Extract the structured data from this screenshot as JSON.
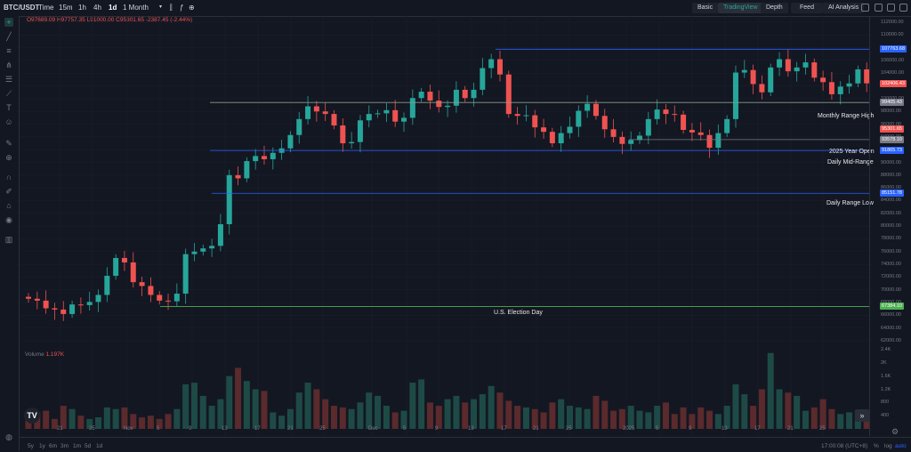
{
  "header": {
    "symbol": "BTC/USDT",
    "timeframes": [
      "Time",
      "15m",
      "1h",
      "4h",
      "1d",
      "1 Month"
    ],
    "active_timeframe": "1d",
    "view_tabs": [
      "Basic",
      "TradingView",
      "Depth"
    ],
    "active_view": "TradingView",
    "feed_label": "Feed",
    "ai_label": "AI Analysis"
  },
  "ohlc": {
    "open": "O97689.09",
    "high": "H97757.35",
    "low": "L91000.00",
    "close": "C95301.65",
    "change": "-2387.45 (-2.44%)"
  },
  "y_axis": {
    "labels": [
      "112000.00",
      "110000.00",
      "108000.00",
      "106000.00",
      "104000.00",
      "102000.00",
      "100000.00",
      "98000.00",
      "96000.00",
      "94000.00",
      "92000.00",
      "90000.00",
      "88000.00",
      "86000.00",
      "84000.00",
      "82000.00",
      "80000.00",
      "78000.00",
      "76000.00",
      "74000.00",
      "72000.00",
      "70000.00",
      "68000.00",
      "66000.00",
      "64000.00",
      "62000.00"
    ],
    "vol_labels": [
      "2.4K",
      "2K",
      "1.6K",
      "1.2K",
      "800",
      "400"
    ]
  },
  "price_tags": [
    {
      "label": "107763.68",
      "color": "#2962ff"
    },
    {
      "label": "102406.43",
      "color": "#ef5350"
    },
    {
      "label": "99405.43",
      "color": "#787b86"
    },
    {
      "label": "95301.65",
      "color": "#ef5350"
    },
    {
      "label": "93578.10",
      "color": "#787b86"
    },
    {
      "label": "91865.73",
      "color": "#2962ff"
    },
    {
      "label": "85151.78",
      "color": "#2962ff"
    },
    {
      "label": "67384.10",
      "color": "#4caf50"
    }
  ],
  "levels": {
    "monthly_high": {
      "price": 107763.68,
      "label": ""
    },
    "monthly_range_high": {
      "price": 99405.43,
      "label": "Monthly Range High"
    },
    "year_open": {
      "price": 93578.1,
      "label": "2025 Year Open"
    },
    "daily_mid": {
      "price": 91865.73,
      "label": "Daily Mid-Range"
    },
    "daily_low": {
      "price": 85151.78,
      "label": "Daily Range Low"
    },
    "election": {
      "price": 67384.1,
      "label": "U.S. Election Day"
    }
  },
  "volume": {
    "title": "Volume",
    "value": "1.197K"
  },
  "x_axis": [
    "21",
    "25",
    "Nov",
    "5",
    "9",
    "13",
    "17",
    "21",
    "25",
    "Dec",
    "5",
    "9",
    "13",
    "17",
    "21",
    "25",
    "2025",
    "5",
    "9",
    "13",
    "17",
    "21",
    "25"
  ],
  "bottom": {
    "ranges": [
      "5y",
      "1y",
      "6m",
      "3m",
      "1m",
      "5d",
      "1d"
    ],
    "time": "17:00:08 (UTC+8)",
    "percent": "%",
    "log": "log",
    "auto": "auto"
  },
  "colors": {
    "up": "#26a69a",
    "down": "#ef5350",
    "bg": "#131722"
  }
}
